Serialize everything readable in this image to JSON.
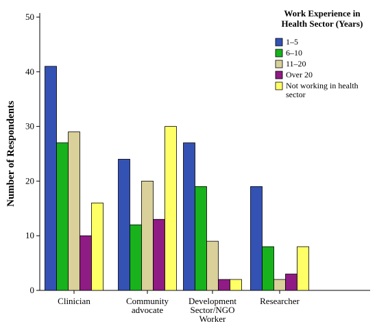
{
  "chart_data": {
    "type": "bar",
    "ylabel": "Number of Respondents",
    "xlabel": "",
    "ylim": [
      0,
      50
    ],
    "yticks": [
      0,
      10,
      20,
      30,
      40,
      50
    ],
    "categories": [
      [
        "Clinician"
      ],
      [
        "Community",
        "advocate"
      ],
      [
        "Development",
        "Sector/NGO",
        "Worker"
      ],
      [
        "Researcher"
      ]
    ],
    "legend": {
      "title": [
        "Work Experience in",
        "Health Sector (Years)"
      ],
      "position": "top-right"
    },
    "series": [
      {
        "name": [
          "1–5"
        ],
        "color": "#3352b3",
        "values": [
          41,
          24,
          27,
          19
        ]
      },
      {
        "name": [
          "6–10"
        ],
        "color": "#17b21c",
        "values": [
          27,
          12,
          19,
          8
        ]
      },
      {
        "name": [
          "11–20"
        ],
        "color": "#d9d09a",
        "values": [
          29,
          20,
          9,
          2
        ]
      },
      {
        "name": [
          "Over 20"
        ],
        "color": "#8f1b84",
        "values": [
          10,
          13,
          2,
          3
        ]
      },
      {
        "name": [
          "Not working in health",
          "sector"
        ],
        "color": "#ffff66",
        "values": [
          16,
          30,
          2,
          8
        ]
      }
    ],
    "grid": false
  }
}
